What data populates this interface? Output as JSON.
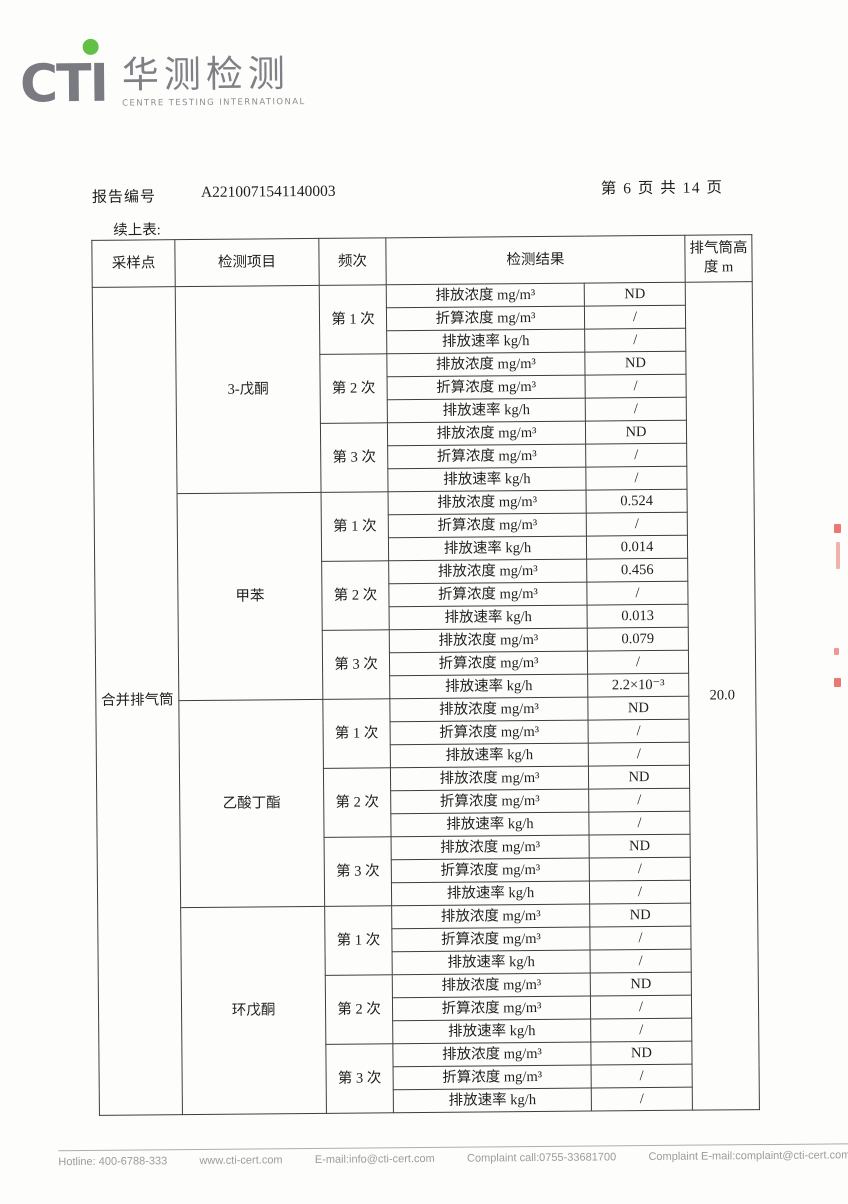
{
  "logo": {
    "acronym": "CTI",
    "name_cn": "华测检测",
    "name_en": "CENTRE TESTING INTERNATIONAL",
    "colors": {
      "gray": "#7a7a81",
      "green": "#63c047"
    }
  },
  "header": {
    "report_no_label": "报告编号",
    "report_no": "A2210071541140003",
    "page_indicator": "第 6 页 共 14 页",
    "continuation_note": "续上表:"
  },
  "table": {
    "columns": {
      "sampling_point": "采样点",
      "test_item": "检测项目",
      "frequency": "频次",
      "result": "检测结果",
      "stack_height": "排气筒高度 m"
    },
    "sampling_point": "合并排气筒",
    "stack_height_value": "20.0",
    "param_labels": [
      "排放浓度 mg/m³",
      "折算浓度 mg/m³",
      "排放速率 kg/h"
    ],
    "frequency_labels": [
      "第 1 次",
      "第 2 次",
      "第 3 次"
    ],
    "groups": [
      {
        "item": "3-戊酮",
        "runs": [
          [
            "ND",
            "/",
            "/"
          ],
          [
            "ND",
            "/",
            "/"
          ],
          [
            "ND",
            "/",
            "/"
          ]
        ]
      },
      {
        "item": "甲苯",
        "runs": [
          [
            "0.524",
            "/",
            "0.014"
          ],
          [
            "0.456",
            "/",
            "0.013"
          ],
          [
            "0.079",
            "/",
            "2.2×10⁻³"
          ]
        ]
      },
      {
        "item": "乙酸丁酯",
        "runs": [
          [
            "ND",
            "/",
            "/"
          ],
          [
            "ND",
            "/",
            "/"
          ],
          [
            "ND",
            "/",
            "/"
          ]
        ]
      },
      {
        "item": "环戊酮",
        "runs": [
          [
            "ND",
            "/",
            "/"
          ],
          [
            "ND",
            "/",
            "/"
          ],
          [
            "ND",
            "/",
            "/"
          ]
        ]
      }
    ]
  },
  "footer": {
    "items": [
      "Hotline: 400-6788-333",
      "www.cti-cert.com",
      "E-mail:info@cti-cert.com",
      "Complaint call:0755-33681700",
      "Complaint E-mail:complaint@cti-cert.com"
    ]
  }
}
